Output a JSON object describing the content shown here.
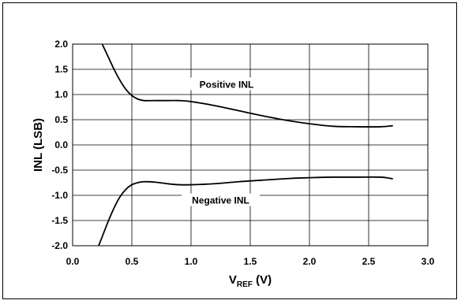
{
  "chart_data": {
    "type": "line",
    "xlabel": {
      "main": "V",
      "sub": "REF",
      "unit": " (V)"
    },
    "ylabel": "INL (LSB)",
    "xlim": [
      0.0,
      3.0
    ],
    "ylim": [
      -2.0,
      2.0
    ],
    "x_ticks": [
      "0.0",
      "0.5",
      "1.0",
      "1.5",
      "2.0",
      "2.5",
      "3.0"
    ],
    "y_ticks": [
      "2.0",
      "1.5",
      "1.0",
      "0.5",
      "0.0",
      "-0.5",
      "-1.0",
      "-1.5",
      "-2.0"
    ],
    "grid": true,
    "series": [
      {
        "name": "Positive INL",
        "color": "#000000",
        "x": [
          0.25,
          0.3,
          0.35,
          0.4,
          0.45,
          0.5,
          0.55,
          0.6,
          0.7,
          0.8,
          0.9,
          1.0,
          1.2,
          1.4,
          1.6,
          1.8,
          2.0,
          2.2,
          2.4,
          2.6,
          2.7
        ],
        "y": [
          2.0,
          1.75,
          1.5,
          1.28,
          1.1,
          0.98,
          0.91,
          0.88,
          0.88,
          0.88,
          0.88,
          0.86,
          0.78,
          0.68,
          0.58,
          0.49,
          0.42,
          0.37,
          0.36,
          0.36,
          0.38
        ]
      },
      {
        "name": "Negative INL",
        "color": "#000000",
        "x": [
          0.22,
          0.25,
          0.3,
          0.35,
          0.4,
          0.45,
          0.5,
          0.55,
          0.6,
          0.7,
          0.8,
          0.9,
          1.0,
          1.2,
          1.4,
          1.6,
          1.8,
          2.0,
          2.2,
          2.4,
          2.6,
          2.7
        ],
        "y": [
          -2.0,
          -1.82,
          -1.52,
          -1.25,
          -1.03,
          -0.88,
          -0.79,
          -0.75,
          -0.73,
          -0.74,
          -0.77,
          -0.79,
          -0.79,
          -0.77,
          -0.73,
          -0.7,
          -0.67,
          -0.65,
          -0.64,
          -0.64,
          -0.64,
          -0.67
        ]
      }
    ],
    "annotations": [
      {
        "text": "Positive INL",
        "x": 1.3,
        "y": 1.18
      },
      {
        "text": "Negative INL",
        "x": 1.25,
        "y": -1.12
      }
    ]
  }
}
